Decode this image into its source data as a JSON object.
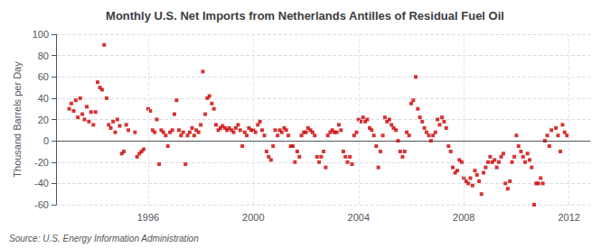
{
  "chart_data": {
    "type": "scatter",
    "title": "Monthly U.S. Net Imports from Netherlands Antilles of Residual Fuel Oil",
    "ylabel": "Thousand Barrels per Day",
    "annotation": "Source: U.S. Energy Information Administration",
    "color": "#cc0000",
    "marker": "square",
    "grid": true,
    "xlim": [
      1992.5,
      2012.8
    ],
    "xticks": [
      1996,
      2000,
      2004,
      2008,
      2012
    ],
    "ylim": [
      -60,
      100
    ],
    "yticks": [
      -60,
      -40,
      -20,
      0,
      20,
      40,
      60,
      80,
      100
    ],
    "x": [
      1993.0,
      1993.08,
      1993.17,
      1993.25,
      1993.33,
      1993.42,
      1993.5,
      1993.58,
      1993.67,
      1993.75,
      1993.83,
      1993.92,
      1994.0,
      1994.08,
      1994.17,
      1994.25,
      1994.33,
      1994.42,
      1994.5,
      1994.58,
      1994.67,
      1994.75,
      1994.83,
      1994.92,
      1995.0,
      1995.08,
      1995.17,
      1995.25,
      1995.5,
      1995.58,
      1995.67,
      1995.75,
      1995.83,
      1996.0,
      1996.08,
      1996.17,
      1996.25,
      1996.33,
      1996.42,
      1996.5,
      1996.58,
      1996.67,
      1996.75,
      1996.83,
      1996.92,
      1997.0,
      1997.08,
      1997.17,
      1997.25,
      1997.33,
      1997.42,
      1997.5,
      1997.58,
      1997.67,
      1997.75,
      1997.83,
      1997.92,
      1998.0,
      1998.08,
      1998.17,
      1998.25,
      1998.33,
      1998.42,
      1998.5,
      1998.58,
      1998.67,
      1998.75,
      1998.83,
      1998.92,
      1999.0,
      1999.08,
      1999.17,
      1999.25,
      1999.33,
      1999.42,
      1999.5,
      1999.58,
      1999.67,
      1999.75,
      1999.83,
      1999.92,
      2000.0,
      2000.08,
      2000.17,
      2000.25,
      2000.33,
      2000.42,
      2000.5,
      2000.58,
      2000.67,
      2000.75,
      2000.83,
      2000.92,
      2001.0,
      2001.08,
      2001.17,
      2001.25,
      2001.33,
      2001.42,
      2001.5,
      2001.58,
      2001.67,
      2001.75,
      2001.83,
      2001.92,
      2002.0,
      2002.08,
      2002.17,
      2002.25,
      2002.33,
      2002.42,
      2002.5,
      2002.58,
      2002.67,
      2002.75,
      2002.83,
      2002.92,
      2003.0,
      2003.08,
      2003.17,
      2003.25,
      2003.33,
      2003.42,
      2003.5,
      2003.58,
      2003.67,
      2003.75,
      2003.83,
      2003.92,
      2004.0,
      2004.08,
      2004.17,
      2004.25,
      2004.33,
      2004.42,
      2004.5,
      2004.58,
      2004.67,
      2004.75,
      2004.83,
      2004.92,
      2005.0,
      2005.08,
      2005.17,
      2005.25,
      2005.33,
      2005.42,
      2005.5,
      2005.58,
      2005.67,
      2005.75,
      2005.83,
      2005.92,
      2006.0,
      2006.08,
      2006.17,
      2006.25,
      2006.33,
      2006.42,
      2006.5,
      2006.58,
      2006.67,
      2006.75,
      2006.83,
      2006.92,
      2007.0,
      2007.08,
      2007.17,
      2007.25,
      2007.33,
      2007.42,
      2007.5,
      2007.58,
      2007.67,
      2007.75,
      2007.83,
      2007.92,
      2008.0,
      2008.08,
      2008.17,
      2008.25,
      2008.33,
      2008.42,
      2008.5,
      2008.58,
      2008.67,
      2008.75,
      2008.83,
      2008.92,
      2009.0,
      2009.08,
      2009.17,
      2009.25,
      2009.33,
      2009.42,
      2009.5,
      2009.58,
      2009.67,
      2009.75,
      2009.83,
      2009.92,
      2010.0,
      2010.08,
      2010.17,
      2010.25,
      2010.33,
      2010.42,
      2010.5,
      2010.58,
      2010.67,
      2010.75,
      2010.83,
      2010.92,
      2011.0,
      2011.08,
      2011.17,
      2011.25,
      2011.33,
      2011.5,
      2011.58,
      2011.67,
      2011.75,
      2011.83,
      2011.92
    ],
    "values": [
      30,
      35,
      28,
      38,
      22,
      40,
      25,
      20,
      32,
      18,
      27,
      15,
      27,
      55,
      50,
      48,
      90,
      40,
      15,
      12,
      18,
      8,
      20,
      14,
      -12,
      -10,
      15,
      10,
      8,
      -15,
      -12,
      -10,
      -8,
      30,
      28,
      10,
      8,
      20,
      -22,
      10,
      8,
      5,
      -5,
      8,
      10,
      25,
      38,
      10,
      5,
      8,
      -22,
      5,
      8,
      12,
      5,
      10,
      8,
      15,
      65,
      25,
      40,
      42,
      35,
      30,
      15,
      10,
      12,
      14,
      12,
      10,
      12,
      10,
      8,
      12,
      15,
      10,
      -5,
      8,
      5,
      12,
      10,
      10,
      8,
      15,
      18,
      10,
      5,
      -10,
      -15,
      -18,
      -5,
      10,
      5,
      10,
      8,
      12,
      10,
      5,
      -5,
      -5,
      -20,
      -10,
      -15,
      5,
      8,
      8,
      12,
      10,
      8,
      5,
      -15,
      -20,
      -15,
      -10,
      -25,
      5,
      8,
      10,
      8,
      8,
      15,
      10,
      -10,
      -15,
      -20,
      -15,
      -22,
      5,
      8,
      20,
      18,
      22,
      18,
      20,
      12,
      10,
      5,
      -5,
      -25,
      -10,
      5,
      22,
      18,
      20,
      15,
      12,
      10,
      0,
      -10,
      -15,
      -10,
      8,
      5,
      35,
      38,
      60,
      30,
      22,
      18,
      12,
      8,
      5,
      0,
      5,
      8,
      20,
      15,
      22,
      18,
      12,
      -5,
      -10,
      -25,
      -30,
      -28,
      -18,
      -20,
      -35,
      -38,
      -40,
      -35,
      -42,
      -28,
      -32,
      -38,
      -50,
      -30,
      -25,
      -20,
      -15,
      -20,
      -18,
      -25,
      -20,
      -15,
      -12,
      -40,
      -45,
      -38,
      -20,
      -15,
      5,
      -5,
      -10,
      -15,
      -20,
      -12,
      -18,
      -25,
      -60,
      -40,
      -40,
      -35,
      -40,
      0,
      5,
      -5,
      10,
      12,
      5,
      -10,
      15,
      8,
      5
    ]
  }
}
